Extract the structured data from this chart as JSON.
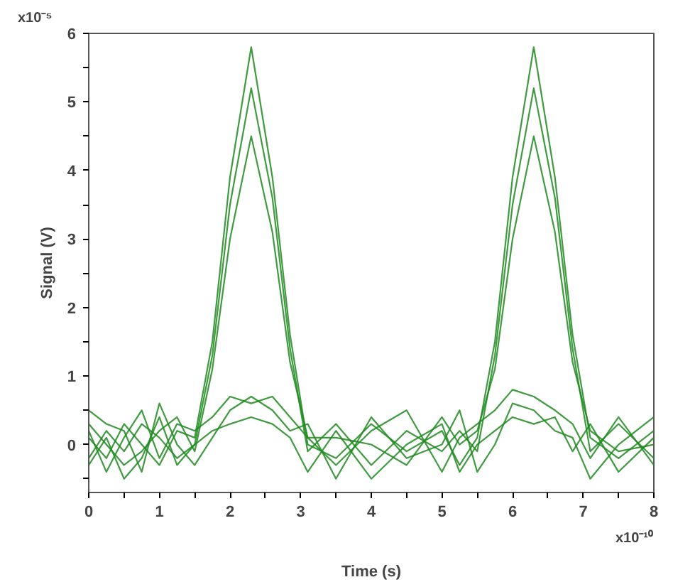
{
  "chart_data": {
    "type": "line",
    "xlabel": "Time (s)",
    "ylabel": "Signal (V)",
    "annotations": [
      "x10⁻⁵",
      "x10⁻¹⁰"
    ],
    "x": [
      0,
      0.25,
      0.5,
      0.75,
      1,
      1.25,
      1.5,
      1.75,
      2,
      2.3,
      2.6,
      2.85,
      3.1,
      3.5,
      4,
      4.5,
      5,
      5.25,
      5.5,
      5.75,
      6,
      6.3,
      6.6,
      6.85,
      7.1,
      7.5,
      8
    ],
    "series": [
      {
        "color": "#1f8a1f",
        "values": [
          0.1,
          -0.2,
          0.3,
          0,
          -0.3,
          0.2,
          0.1,
          1.5,
          3.9,
          5.8,
          3.9,
          1.6,
          0,
          -0.2,
          0.3,
          -0.1,
          0.2,
          -0.3,
          0.1,
          1.5,
          3.9,
          5.8,
          3.9,
          1.6,
          0.1,
          -0.2,
          0.2
        ]
      },
      {
        "color": "#1f8a1f",
        "values": [
          -0.2,
          0.2,
          -0.1,
          0.3,
          0.1,
          -0.2,
          0,
          1.3,
          3.5,
          5.2,
          3.6,
          1.4,
          -0.1,
          0.3,
          -0.3,
          0.2,
          -0.1,
          0.2,
          -0.1,
          1.3,
          3.5,
          5.2,
          3.6,
          1.4,
          -0.1,
          0.3,
          -0.2
        ]
      },
      {
        "color": "#1f8a1f",
        "values": [
          0.3,
          0,
          -0.3,
          -0.1,
          0.2,
          0.4,
          -0.1,
          1.1,
          3.0,
          4.5,
          3.1,
          1.2,
          0.1,
          0.1,
          0,
          -0.3,
          0.4,
          0,
          0.2,
          1.1,
          3.0,
          4.5,
          3.1,
          1.2,
          0.2,
          -0.1,
          0
        ]
      },
      {
        "color": "#1f8a1f",
        "values": [
          0.2,
          -0.4,
          0.1,
          0.5,
          -0.2,
          0.3,
          0.2,
          0.4,
          0.7,
          0.6,
          0.7,
          0.4,
          0.1,
          -0.3,
          0.2,
          0.5,
          -0.4,
          0.1,
          0.3,
          0.5,
          0.8,
          0.7,
          0.5,
          0.3,
          -0.2,
          0.4,
          -0.3
        ]
      },
      {
        "color": "#1f8a1f",
        "values": [
          -0.3,
          0.1,
          -0.5,
          -0.2,
          0.4,
          -0.3,
          0,
          0.2,
          0.3,
          0.4,
          0.3,
          0.1,
          -0.4,
          0.2,
          -0.5,
          0,
          0.3,
          -0.4,
          0,
          0.2,
          0.4,
          0.3,
          0.4,
          -0.1,
          0.3,
          -0.4,
          0.1
        ]
      },
      {
        "color": "#1f8a1f",
        "values": [
          0.5,
          0.3,
          0.2,
          -0.4,
          0.6,
          0,
          -0.3,
          0.1,
          0.5,
          0.7,
          0.5,
          0.2,
          0.3,
          -0.5,
          0.4,
          -0.2,
          0,
          0.5,
          -0.4,
          0,
          0.6,
          0.5,
          0.2,
          0.1,
          -0.5,
          0,
          0.4
        ]
      }
    ],
    "xlim": [
      0,
      8
    ],
    "ylim": [
      -0.7,
      6
    ],
    "xticks": [
      0,
      {
        "value": 0.5,
        "label": null
      },
      1,
      {
        "value": 1.5,
        "label": null
      },
      2,
      {
        "value": 2.5,
        "label": null
      },
      3,
      {
        "value": 3.5,
        "label": null
      },
      4,
      {
        "value": 4.5,
        "label": null
      },
      5,
      {
        "value": 5.5,
        "label": null
      },
      6,
      {
        "value": 6.5,
        "label": null
      },
      7,
      {
        "value": 7.5,
        "label": null
      },
      8
    ],
    "yticks": [
      {
        "value": -0.5,
        "label": null
      },
      0,
      {
        "value": 0.5,
        "label": null
      },
      1,
      {
        "value": 1.5,
        "label": null
      },
      2,
      {
        "value": 2.5,
        "label": null
      },
      3,
      {
        "value": 3.5,
        "label": null
      },
      4,
      {
        "value": 4.5,
        "label": null
      },
      5,
      {
        "value": 5.5,
        "label": null
      },
      6
    ],
    "grid": false,
    "marker": "none",
    "line_style": "solid"
  }
}
